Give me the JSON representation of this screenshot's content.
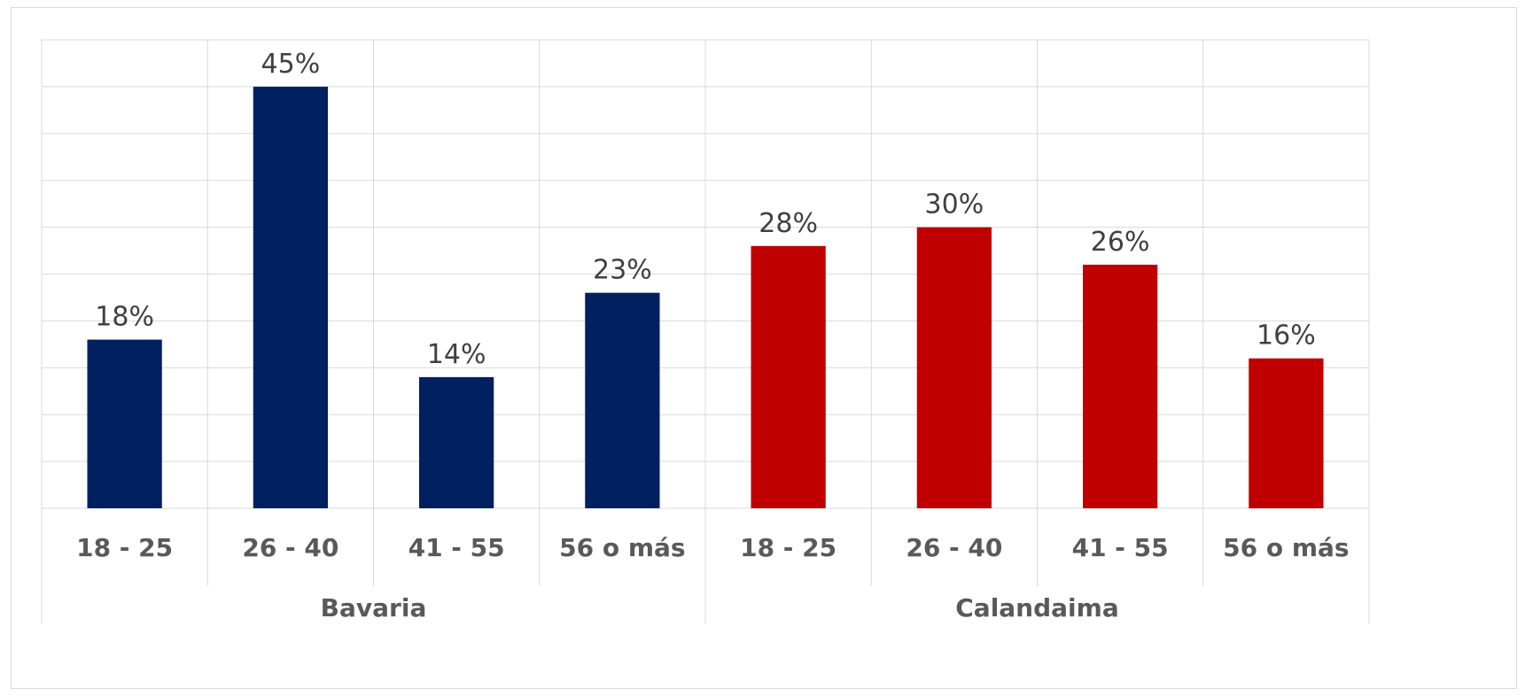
{
  "chart_data": {
    "type": "bar",
    "title": "",
    "xlabel": "",
    "ylabel": "",
    "ylim": [
      0,
      50
    ],
    "grid": true,
    "legend": "none",
    "value_suffix": "%",
    "groups": [
      {
        "name": "Bavaria",
        "color": "#002060",
        "categories": [
          "18 - 25",
          "26 - 40",
          "41 - 55",
          "56 o más"
        ],
        "values": [
          18,
          45,
          14,
          23
        ]
      },
      {
        "name": "Calandaima",
        "color": "#C00000",
        "categories": [
          "18 - 25",
          "26 - 40",
          "41 - 55",
          "56 o más"
        ],
        "values": [
          28,
          30,
          26,
          16
        ]
      }
    ]
  }
}
